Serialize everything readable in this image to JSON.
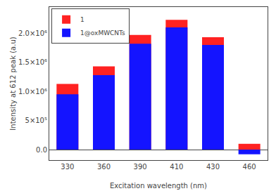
{
  "chart_data": {
    "type": "bar",
    "categories": [
      "330",
      "360",
      "390",
      "410",
      "430",
      "460"
    ],
    "series": [
      {
        "name": "1",
        "color": "#FF2222",
        "values": [
          1130000,
          1430000,
          1970000,
          2230000,
          1930000,
          100000
        ]
      },
      {
        "name": "1@oxMWCNTs",
        "color": "#1414FF",
        "values": [
          950000,
          1280000,
          1820000,
          2100000,
          1800000,
          -80000
        ]
      }
    ],
    "xlabel": "Excitation wavelength (nm)",
    "ylabel": "Intensity at 612 peak (a.u)",
    "ylim": [
      -180000,
      2450000
    ],
    "yticks": [
      {
        "value": 0,
        "label": "0.0"
      },
      {
        "value": 500000,
        "label": "5×10⁵"
      },
      {
        "value": 1000000,
        "label": "1.0×10⁶"
      },
      {
        "value": 1500000,
        "label": "1.5×10⁶"
      },
      {
        "value": 2000000,
        "label": "2.0×10⁶"
      }
    ],
    "grid": false,
    "legend": "upper left"
  }
}
